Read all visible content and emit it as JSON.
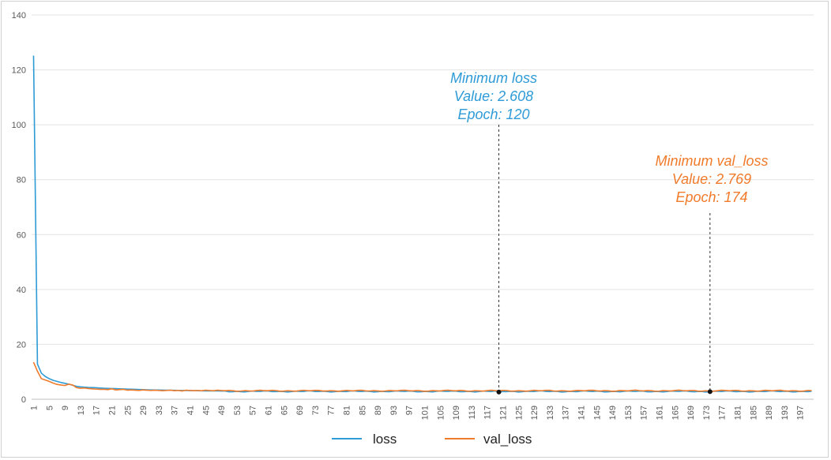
{
  "chart_data": {
    "type": "line",
    "xlabel": "",
    "ylabel": "",
    "ylim": [
      0,
      140
    ],
    "yticks": [
      0,
      20,
      40,
      60,
      80,
      100,
      120,
      140
    ],
    "x_start": 1,
    "x_end": 200,
    "x_tick_step": 4,
    "grid": "horizontal",
    "legend_position": "bottom",
    "series": [
      {
        "name": "loss",
        "color": "#2E9BD6",
        "values": [
          125.2,
          12.8,
          9.5,
          8.3,
          7.5,
          6.9,
          6.5,
          6.1,
          5.8,
          5.5,
          5.1,
          4.7,
          4.5,
          4.4,
          4.3,
          4.25,
          4.2,
          4.1,
          4.0,
          3.95,
          3.9,
          3.85,
          3.8,
          3.75,
          3.7,
          3.65,
          3.6,
          3.55,
          3.5,
          3.45,
          3.4,
          3.38,
          3.35,
          3.33,
          3.3,
          3.28,
          3.25,
          3.23,
          3.2,
          3.18,
          3.15,
          3.13,
          3.1,
          3.08,
          3.05,
          3.04,
          3.03,
          3.02,
          3.01,
          3.0
        ],
        "tail_level": 2.85
      },
      {
        "name": "val_loss",
        "color": "#F07B2A",
        "values": [
          13.5,
          10.2,
          7.5,
          7.0,
          6.5,
          5.9,
          5.4,
          5.2,
          5.0,
          5.5,
          5.2,
          4.2,
          4.0,
          4.1,
          3.9,
          3.8,
          3.7,
          3.6,
          3.6,
          3.5,
          3.8,
          3.4,
          3.5,
          3.6,
          3.3,
          3.4,
          3.3,
          3.2,
          3.4,
          3.3,
          3.2,
          3.3,
          3.2,
          3.1,
          3.2,
          3.3,
          3.1,
          3.2,
          3.0,
          3.3,
          3.2,
          3.1,
          3.2,
          3.1,
          3.3,
          3.2,
          3.1,
          3.3,
          3.2,
          3.1
        ],
        "tail_level": 3.1
      }
    ],
    "annotations": [
      {
        "id": "min_loss",
        "title": "Minimum loss",
        "value_text": "Value: 2.608",
        "epoch_text": "Epoch: 120",
        "epoch": 120,
        "value": 2.608,
        "color": "#2E9BD6"
      },
      {
        "id": "min_val_loss",
        "title": "Minimum val_loss",
        "value_text": "Value: 2.769",
        "epoch_text": "Epoch: 174",
        "epoch": 174,
        "value": 2.769,
        "color": "#F07B2A"
      }
    ]
  },
  "legend": {
    "loss_label": "loss",
    "val_loss_label": "val_loss"
  }
}
